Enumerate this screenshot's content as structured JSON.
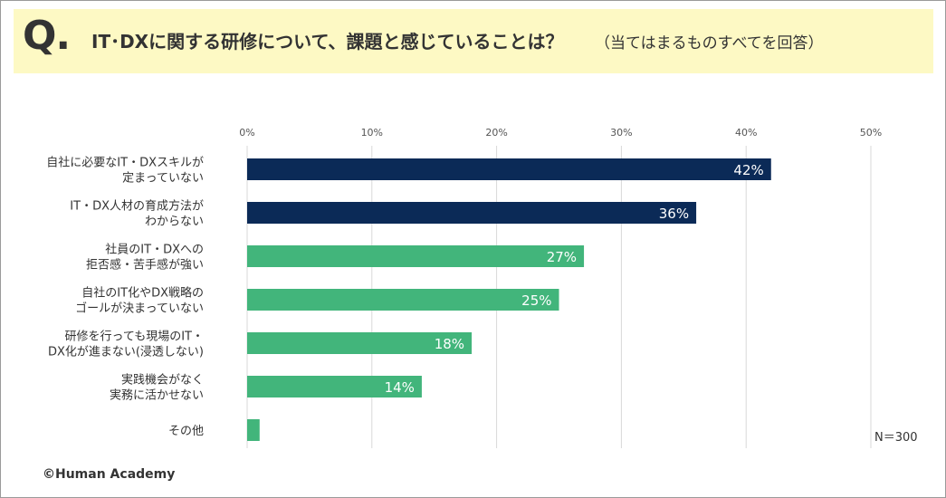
{
  "header": {
    "q_mark": "Q.",
    "question": "IT･DXに関する研修について、課題と感じていることは？",
    "note": "（当てはまるものすべてを回答）"
  },
  "sample_size": "N＝300",
  "copyright": "©Human Academy",
  "colors": {
    "header_bg": "#fdf9c4",
    "series_dark": "#0b2a57",
    "series_green": "#42b57b",
    "grid": "#d9d9d9"
  },
  "chart_data": {
    "type": "bar",
    "orientation": "horizontal",
    "title": "IT･DXに関する研修について、課題と感じていることは？",
    "xlim": [
      0,
      50
    ],
    "x_ticks": [
      "0%",
      "10%",
      "20%",
      "30%",
      "40%",
      "50%"
    ],
    "grid": true,
    "categories": [
      [
        "自社に必要なIT・DXスキルが",
        "定まっていない"
      ],
      [
        "IT・DX人材の育成方法が",
        "わからない"
      ],
      [
        "社員のIT・DXへの",
        "拒否感・苦手感が強い"
      ],
      [
        "自社のIT化やDX戦略の",
        "ゴールが決まっていない"
      ],
      [
        "研修を行っても現場のIT・",
        "DX化が進まない(浸透しない)"
      ],
      [
        "実践機会がなく",
        "実務に活かせない"
      ],
      [
        "その他"
      ]
    ],
    "values": [
      42,
      36,
      27,
      25,
      18,
      14,
      1
    ],
    "data_labels": [
      "42%",
      "36%",
      "27%",
      "25%",
      "18%",
      "14%",
      ""
    ],
    "bar_colors": [
      "#0b2a57",
      "#0b2a57",
      "#42b57b",
      "#42b57b",
      "#42b57b",
      "#42b57b",
      "#42b57b"
    ]
  }
}
